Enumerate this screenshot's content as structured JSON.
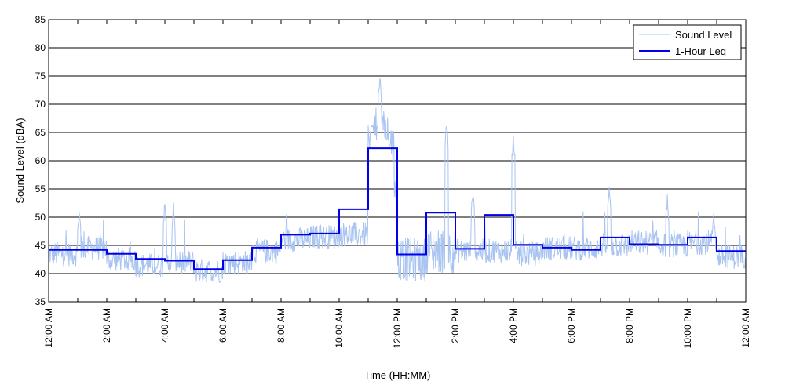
{
  "chart_data": {
    "type": "line",
    "title": "",
    "xlabel": "Time (HH:MM)",
    "ylabel": "Sound Level (dBA)",
    "xlim": [
      0,
      24
    ],
    "ylim": [
      35,
      85
    ],
    "y_ticks": [
      35,
      40,
      45,
      50,
      55,
      60,
      65,
      70,
      75,
      80,
      85
    ],
    "x_ticks": [
      0,
      2,
      4,
      6,
      8,
      10,
      12,
      14,
      16,
      18,
      20,
      22,
      24
    ],
    "x_tick_labels": [
      "12:00 AM",
      "2:00 AM",
      "4:00 AM",
      "6:00 AM",
      "8:00 AM",
      "10:00 AM",
      "12:00 PM",
      "2:00 PM",
      "4:00 PM",
      "6:00 PM",
      "8:00 PM",
      "10:00 PM",
      "12:00 AM"
    ],
    "grid": "horizontal",
    "legend_position": "top-right",
    "series": [
      {
        "name": "Sound Level",
        "color": "#a9c4f0",
        "style": "thin-line",
        "hourly_mean": [
          43.5,
          44.5,
          42.5,
          41.5,
          42.0,
          40.5,
          42.0,
          44.0,
          46.0,
          46.5,
          47.0,
          57.0,
          42.5,
          44.0,
          44.0,
          44.0,
          43.5,
          44.5,
          44.5,
          45.0,
          45.5,
          45.0,
          45.5,
          43.0
        ],
        "peaks": [
          {
            "x": 1.05,
            "y": 52
          },
          {
            "x": 4.0,
            "y": 53
          },
          {
            "x": 4.3,
            "y": 53
          },
          {
            "x": 11.4,
            "y": 75.5
          },
          {
            "x": 13.7,
            "y": 67
          },
          {
            "x": 14.6,
            "y": 55.5
          },
          {
            "x": 16.0,
            "y": 64.5
          },
          {
            "x": 19.3,
            "y": 56.5
          },
          {
            "x": 21.3,
            "y": 54
          },
          {
            "x": 22.9,
            "y": 51.5
          }
        ]
      },
      {
        "name": "1-Hour Leq",
        "color": "#0000ee",
        "style": "step",
        "hourly_values": [
          44.2,
          44.2,
          43.5,
          42.6,
          42.3,
          40.8,
          42.4,
          44.6,
          46.9,
          47.1,
          51.4,
          62.2,
          43.4,
          50.8,
          44.4,
          50.4,
          45.1,
          44.6,
          44.2,
          46.4,
          45.2,
          45.1,
          46.4,
          44.0
        ]
      }
    ]
  }
}
